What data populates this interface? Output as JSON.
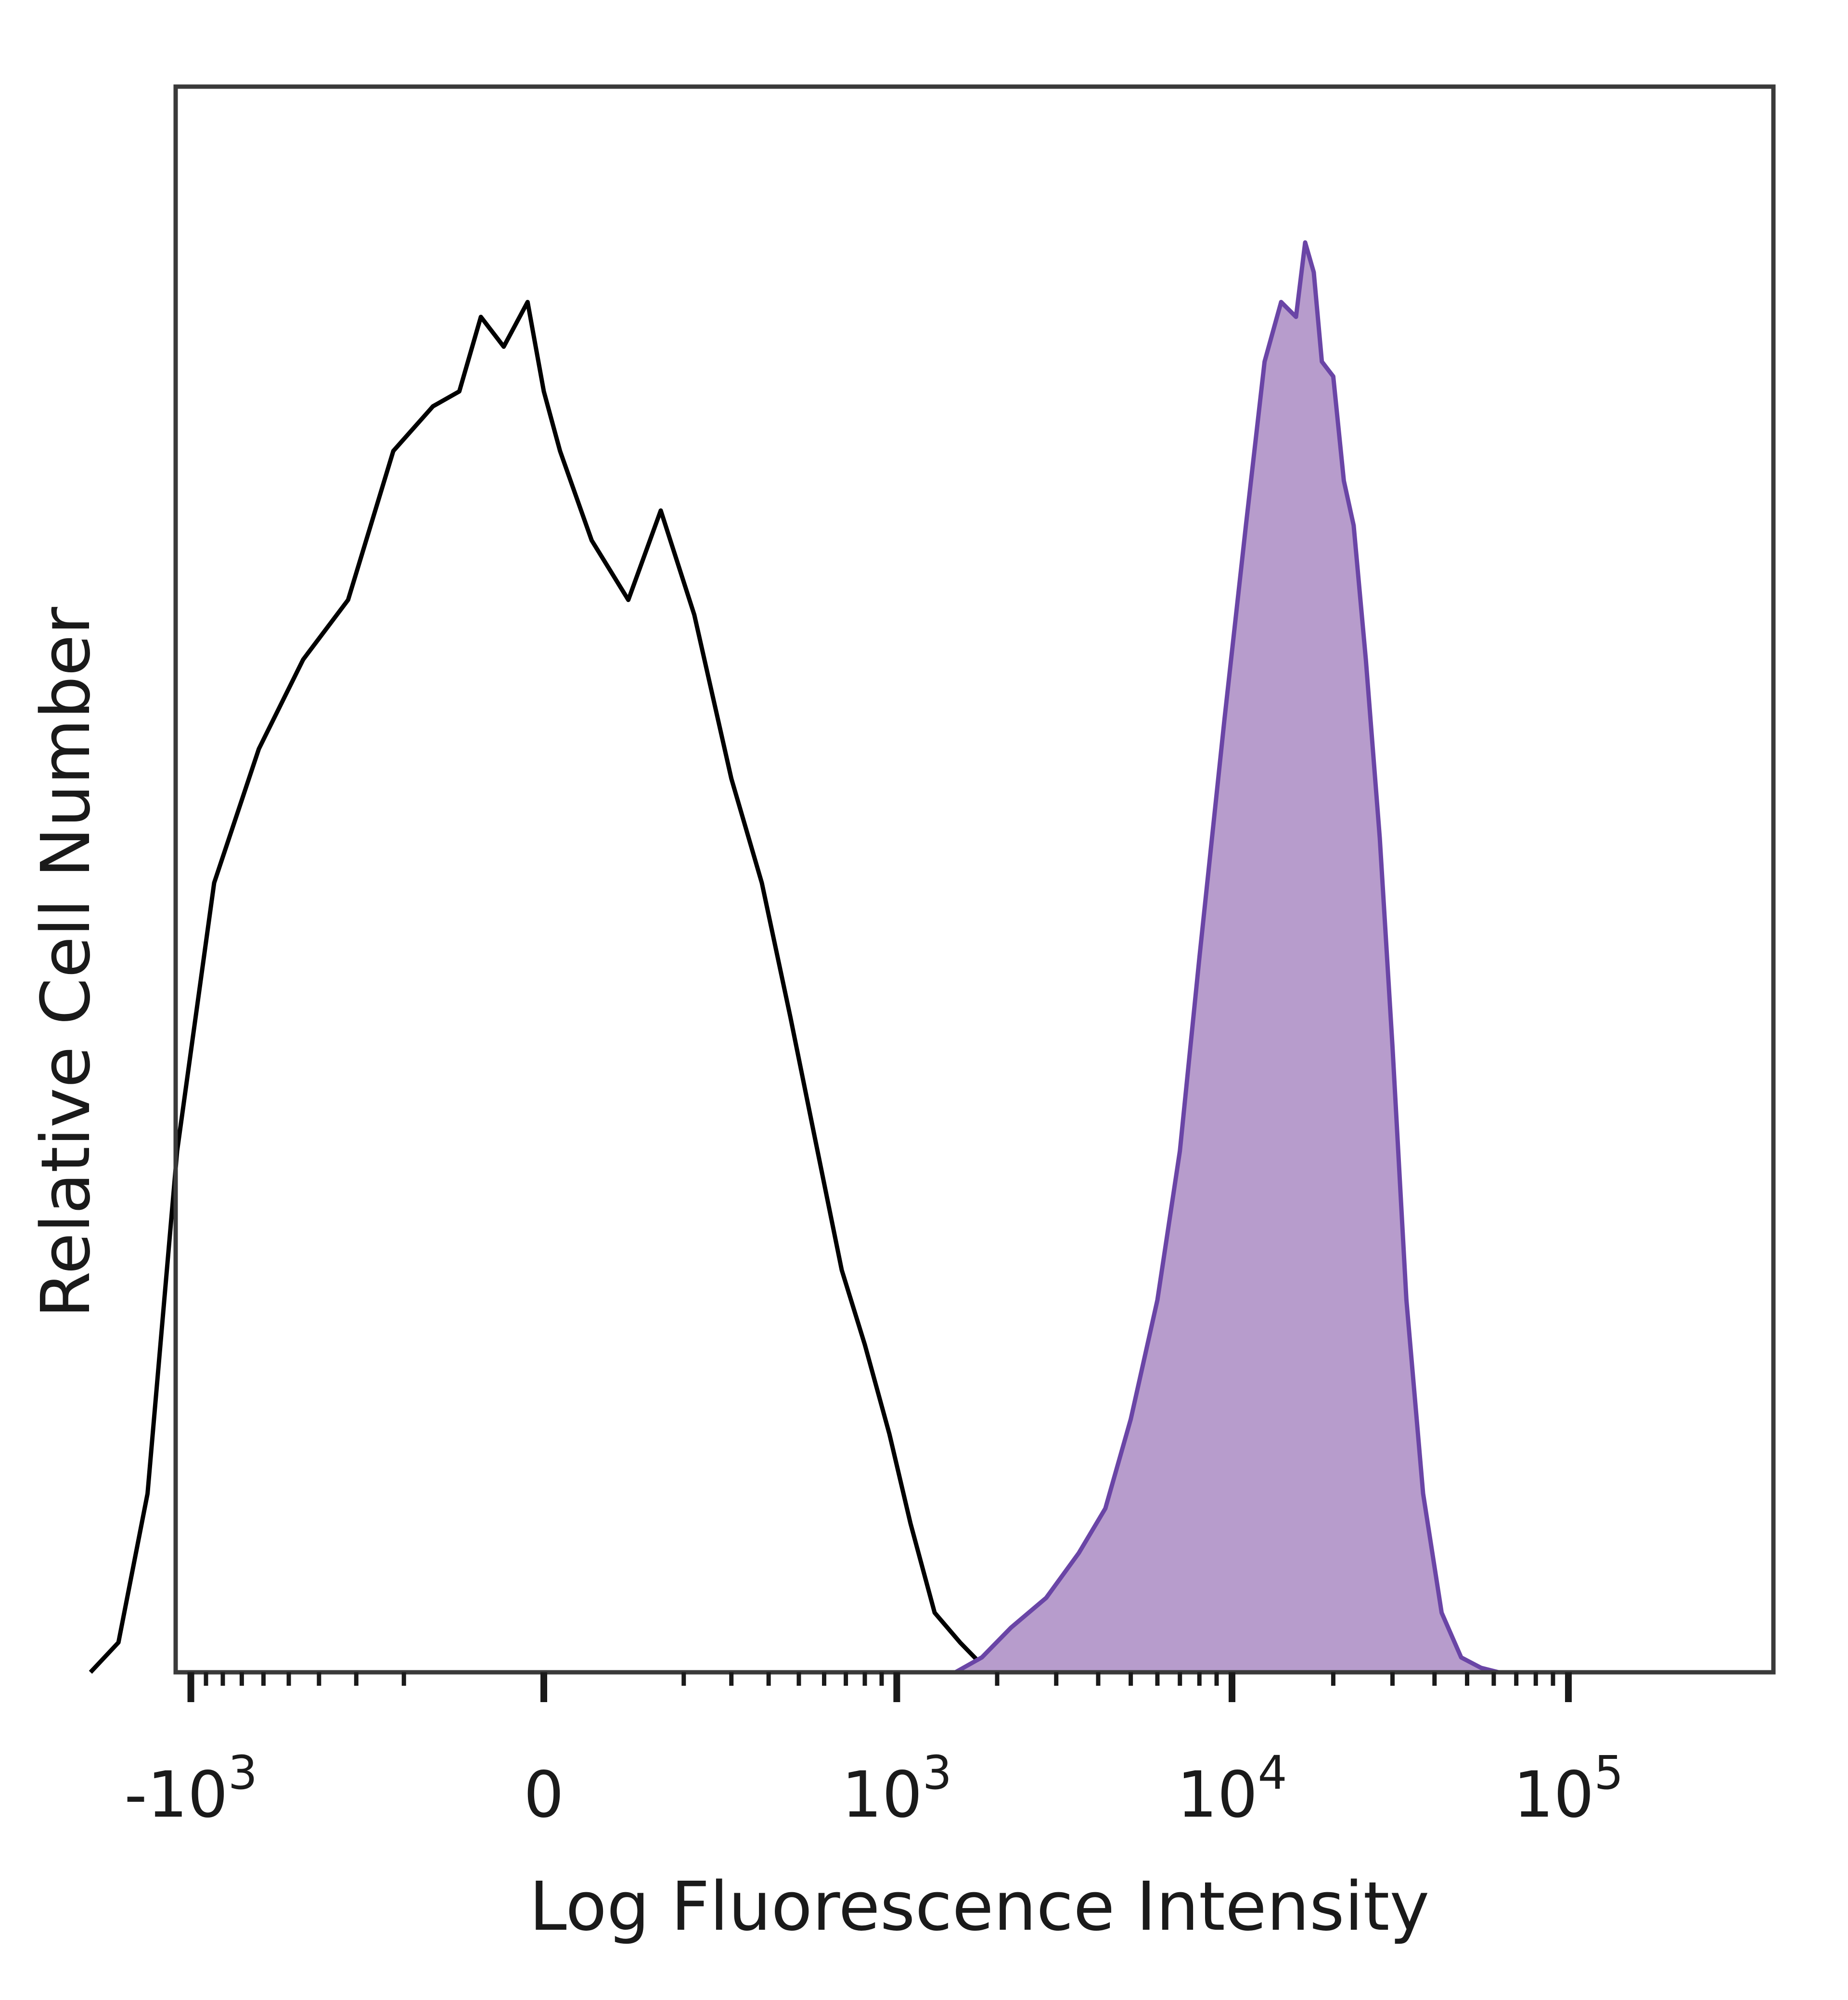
{
  "chart_data": {
    "type": "area",
    "xlabel": "Log Fluorescence Intensity",
    "ylabel": "Relative Cell Number",
    "x_scale": "biexponential",
    "y_scale": "linear",
    "ylim": [
      0,
      100
    ],
    "grid": false,
    "legend": "none",
    "x_ticks": [
      {
        "value": -1000,
        "base": "-10",
        "exp": "3"
      },
      {
        "value": 0,
        "base": "0",
        "exp": ""
      },
      {
        "value": 1000,
        "base": "10",
        "exp": "3"
      },
      {
        "value": 10000,
        "base": "10",
        "exp": "4"
      },
      {
        "value": 100000,
        "base": "10",
        "exp": "5"
      }
    ],
    "series": [
      {
        "style": "outline",
        "color": "#000000",
        "x": [
          -2000,
          -1650,
          -1350,
          -1100,
          -850,
          -620,
          -450,
          -320,
          -220,
          -150,
          -110,
          -80,
          -50,
          -20,
          0,
          20,
          60,
          110,
          160,
          220,
          300,
          380,
          470,
          560,
          680,
          800,
          950,
          1100,
          1300,
          1550,
          1800,
          2100
        ],
        "y": [
          0,
          2,
          12,
          35,
          53,
          62,
          68,
          72,
          82,
          85,
          86,
          91,
          89,
          92,
          86,
          82,
          76,
          72,
          78,
          71,
          60,
          53,
          44,
          36,
          27,
          22,
          16,
          10,
          4,
          2,
          0.5,
          0
        ]
      },
      {
        "style": "filled",
        "color": "#6a45a6",
        "fill": "#b79ccc",
        "x": [
          1500,
          1800,
          2200,
          2800,
          3500,
          4200,
          5000,
          6000,
          7000,
          8000,
          9500,
          11000,
          12500,
          14000,
          15500,
          16500,
          17500,
          18500,
          20000,
          21500,
          23000,
          25000,
          27500,
          30000,
          33000,
          37000,
          42000,
          48000,
          55000,
          62000,
          70000
        ],
        "y": [
          0,
          1,
          3,
          5,
          8,
          11,
          17,
          25,
          35,
          48,
          64,
          77,
          88,
          92,
          91,
          96,
          94,
          88,
          87,
          80,
          77,
          68,
          56,
          42,
          25,
          12,
          4,
          1,
          0.3,
          0,
          0
        ]
      }
    ]
  }
}
